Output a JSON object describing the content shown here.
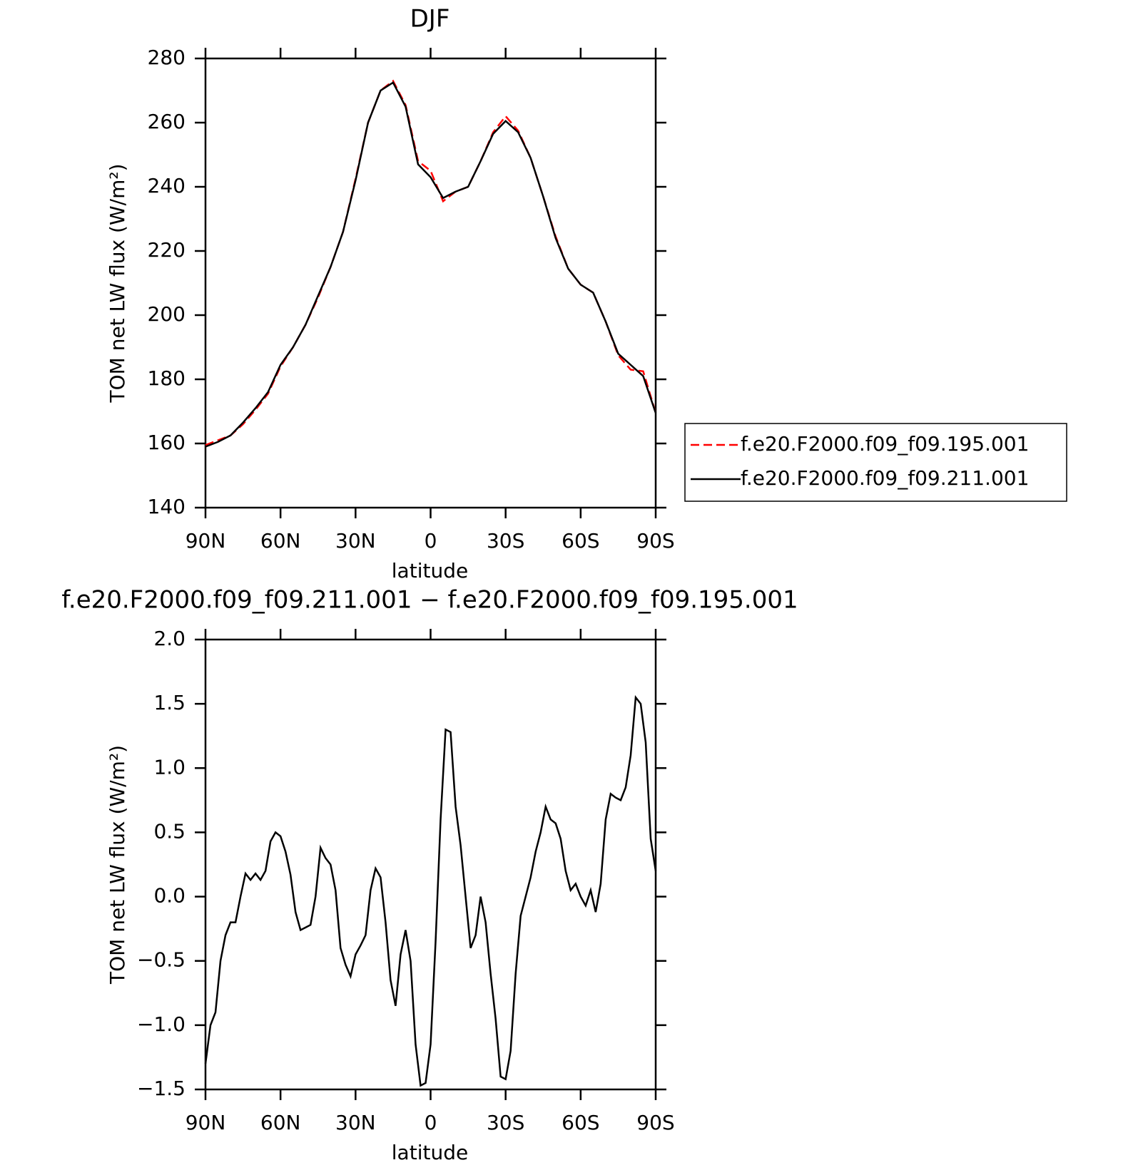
{
  "chart_data": [
    {
      "type": "line",
      "title": "DJF",
      "x_label": "latitude",
      "y_label": "TOM net LW flux (W/m²)",
      "x": [
        90,
        85,
        80,
        75,
        70,
        65,
        60,
        55,
        50,
        45,
        40,
        35,
        30,
        25,
        20,
        15,
        10,
        5,
        0,
        -5,
        -10,
        -15,
        -20,
        -25,
        -30,
        -35,
        -40,
        -45,
        -50,
        -55,
        -60,
        -65,
        -70,
        -75,
        -80,
        -85,
        -90
      ],
      "series": [
        {
          "name": "f.e20.F2000.f09_f09.195.001",
          "color": "#ff0000",
          "dash": "dashed",
          "values": [
            159.5,
            161,
            162.5,
            166,
            170.5,
            175.5,
            184,
            190,
            197,
            205.5,
            215,
            226,
            242.5,
            260,
            270,
            273,
            265.5,
            248,
            245,
            235.5,
            238.5,
            240,
            248,
            257,
            262,
            257.5,
            249,
            237,
            224.5,
            214.5,
            209.5,
            207,
            198,
            187.5,
            183,
            182.5,
            169.5
          ]
        },
        {
          "name": "f.e20.F2000.f09_f09.211.001",
          "color": "#000000",
          "dash": "solid",
          "values": [
            159,
            160.5,
            162.5,
            166.5,
            171,
            176,
            184.5,
            190,
            197,
            206,
            215,
            226,
            242,
            260,
            270,
            272.5,
            265,
            247,
            243,
            236.5,
            238.5,
            240,
            248,
            256.5,
            260.5,
            257,
            249,
            237,
            224,
            214.5,
            209.5,
            207,
            198,
            188,
            184.5,
            181,
            169.5
          ]
        }
      ],
      "xlim": [
        90,
        -90
      ],
      "xticks": [
        {
          "value": 90,
          "label": "90N"
        },
        {
          "value": 60,
          "label": "60N"
        },
        {
          "value": 30,
          "label": "30N"
        },
        0,
        {
          "value": -30,
          "label": "30S"
        },
        {
          "value": -60,
          "label": "60S"
        },
        {
          "value": -90,
          "label": "90S"
        }
      ],
      "ylim": [
        140,
        280
      ],
      "yticks": [
        140,
        160,
        180,
        200,
        220,
        240,
        260,
        280
      ],
      "legend": "right"
    },
    {
      "type": "line",
      "title": "f.e20.F2000.f09_f09.211.001 − f.e20.F2000.f09_f09.195.001",
      "x_label": "latitude",
      "y_label": "TOM net LW flux (W/m²)",
      "x": [
        90,
        88,
        86,
        84,
        82,
        80,
        78,
        76,
        74,
        72,
        70,
        68,
        66,
        64,
        62,
        60,
        58,
        56,
        54,
        52,
        50,
        48,
        46,
        44,
        42,
        40,
        38,
        36,
        34,
        32,
        30,
        28,
        26,
        24,
        22,
        20,
        18,
        16,
        14,
        12,
        10,
        8,
        6,
        4,
        2,
        0,
        -2,
        -4,
        -6,
        -8,
        -10,
        -12,
        -14,
        -16,
        -18,
        -20,
        -22,
        -24,
        -26,
        -28,
        -30,
        -32,
        -34,
        -36,
        -38,
        -40,
        -42,
        -44,
        -46,
        -48,
        -50,
        -52,
        -54,
        -56,
        -58,
        -60,
        -62,
        -64,
        -66,
        -68,
        -70,
        -72,
        -74,
        -76,
        -78,
        -80,
        -82,
        -84,
        -86,
        -88,
        -90
      ],
      "values": [
        -1.3,
        -1.0,
        -0.9,
        -0.5,
        -0.3,
        -0.2,
        -0.2,
        0.0,
        0.18,
        0.13,
        0.18,
        0.13,
        0.2,
        0.43,
        0.5,
        0.47,
        0.35,
        0.17,
        -0.12,
        -0.26,
        -0.24,
        -0.22,
        0.0,
        0.38,
        0.3,
        0.25,
        0.05,
        -0.4,
        -0.53,
        -0.62,
        -0.45,
        -0.38,
        -0.3,
        0.05,
        0.22,
        0.15,
        -0.2,
        -0.65,
        -0.85,
        -0.45,
        -0.26,
        -0.5,
        -1.15,
        -1.47,
        -1.45,
        -1.15,
        -0.35,
        0.6,
        1.3,
        1.28,
        0.7,
        0.4,
        0.0,
        -0.4,
        -0.3,
        0.0,
        -0.2,
        -0.6,
        -0.95,
        -1.4,
        -1.42,
        -1.2,
        -0.6,
        -0.15,
        0.0,
        0.15,
        0.35,
        0.5,
        0.7,
        0.6,
        0.57,
        0.45,
        0.2,
        0.05,
        0.1,
        0.0,
        -0.07,
        0.05,
        -0.12,
        0.1,
        0.6,
        0.8,
        0.77,
        0.75,
        0.85,
        1.1,
        1.55,
        1.5,
        1.2,
        0.45,
        0.2
      ],
      "color": "#000000",
      "xlim": [
        90,
        -90
      ],
      "xticks": [
        {
          "value": 90,
          "label": "90N"
        },
        {
          "value": 60,
          "label": "60N"
        },
        {
          "value": 30,
          "label": "30N"
        },
        0,
        {
          "value": -30,
          "label": "30S"
        },
        {
          "value": -60,
          "label": "60S"
        },
        {
          "value": -90,
          "label": "90S"
        }
      ],
      "ylim": [
        -1.5,
        2.0
      ],
      "yticks": [
        {
          "value": -1.5,
          "label": "−1.5"
        },
        {
          "value": -1.0,
          "label": "−1.0"
        },
        {
          "value": -0.5,
          "label": "−0.5"
        },
        {
          "value": 0.0,
          "label": "0.0"
        },
        0.5,
        {
          "value": 1.0,
          "label": "1.0"
        },
        1.5,
        {
          "value": 2.0,
          "label": "2.0"
        }
      ]
    }
  ]
}
